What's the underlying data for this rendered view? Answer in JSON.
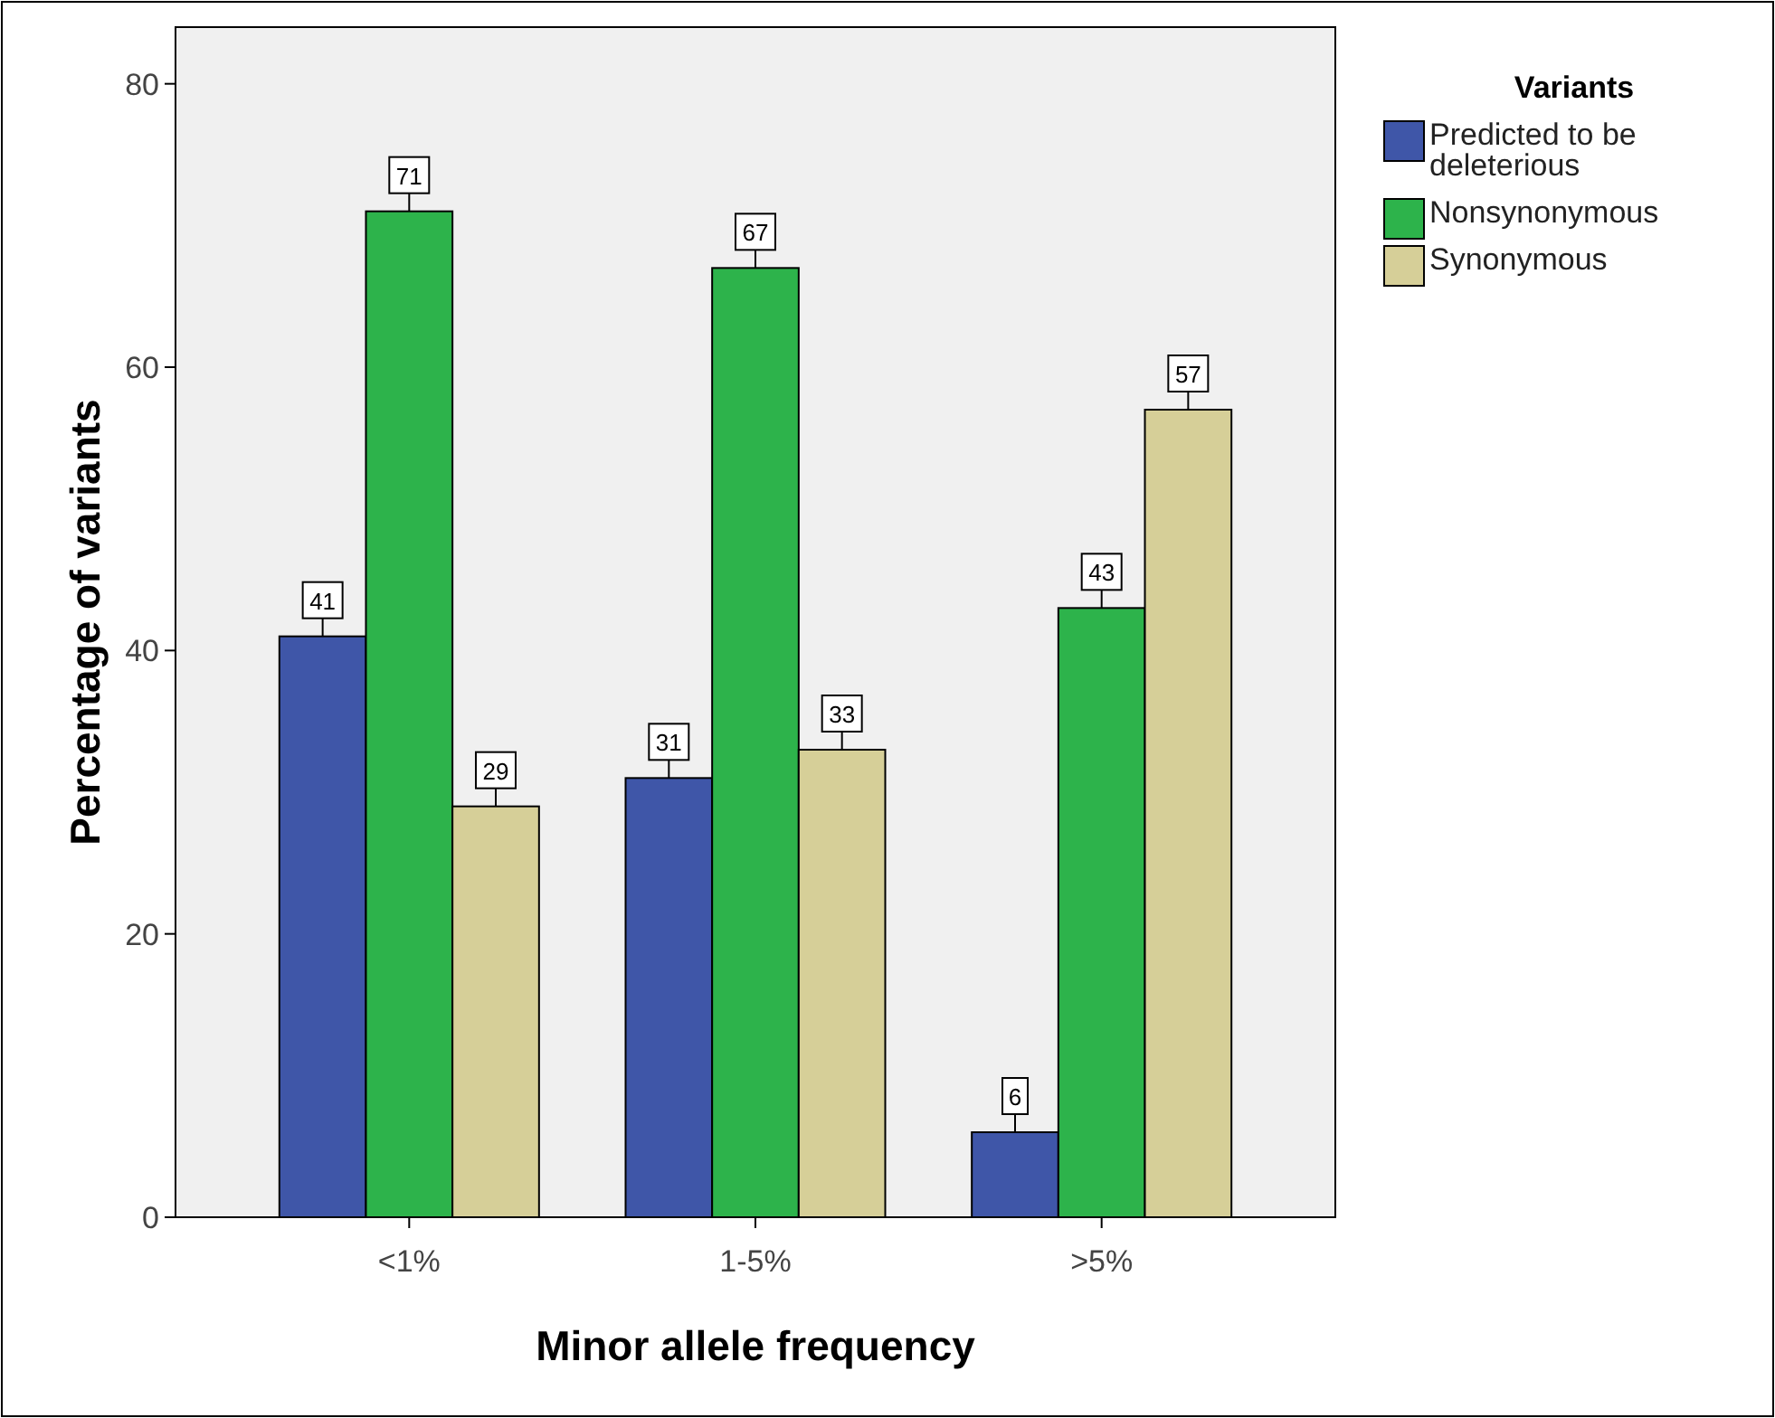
{
  "chart_data": {
    "type": "bar",
    "xlabel": "Minor allele frequency",
    "ylabel": "Percentage of variants",
    "legend_title": "Variants",
    "categories": [
      "<1%",
      "1-5%",
      ">5%"
    ],
    "series": [
      {
        "name": "Predicted to be deleterious",
        "color": "#3f56a8",
        "values": [
          41,
          31,
          6
        ]
      },
      {
        "name": "Nonsynonymous",
        "color": "#2db34b",
        "values": [
          71,
          67,
          43
        ]
      },
      {
        "name": "Synonymous",
        "color": "#d6cf98",
        "values": [
          29,
          33,
          57
        ]
      }
    ],
    "ylim": [
      0,
      84
    ],
    "yticks": [
      0,
      20,
      40,
      60,
      80
    ],
    "data_labels": true,
    "legend": "right",
    "grid": false
  }
}
